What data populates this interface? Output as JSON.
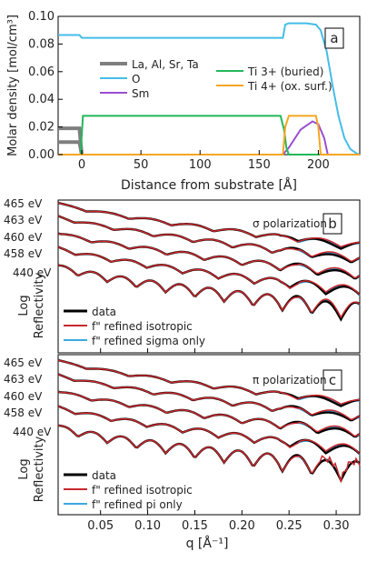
{
  "chart_data": [
    {
      "type": "line",
      "panel_label": "a",
      "xlabel": "Distance from substrate [Å]",
      "ylabel": "Molar density [mol/cm³]",
      "xlim": [
        -20,
        235
      ],
      "ylim": [
        0,
        0.1
      ],
      "xticks": [
        "0",
        "50",
        "100",
        "150",
        "200"
      ],
      "yticks": [
        "0.00",
        "0.02",
        "0.04",
        "0.06",
        "0.08",
        "0.10"
      ],
      "grid": false,
      "legend_position": "left-middle",
      "colors": {
        "La, Al, Sr, Ta": "#7f7f7f",
        "O": "#45bde8",
        "Sm": "#9b4fd0",
        "Ti 3+ (buried)": "#23b85a",
        "Ti 4+ (ox. surf.)": "#f5a623"
      },
      "series": [
        {
          "name": "La, Al, Sr, Ta",
          "x": [
            -20,
            -2,
            0
          ],
          "y": [
            0.019,
            0.019,
            0.0
          ]
        },
        {
          "name": "La, Al, Sr, Ta",
          "x": [
            -20,
            -2,
            0
          ],
          "y": [
            0.009,
            0.009,
            0.0
          ]
        },
        {
          "name": "O",
          "x": [
            -20,
            -2,
            0,
            170,
            172,
            175,
            190,
            198,
            202,
            207,
            212,
            217,
            222,
            227,
            232,
            235
          ],
          "y": [
            0.0865,
            0.0865,
            0.0845,
            0.0845,
            0.094,
            0.095,
            0.095,
            0.094,
            0.09,
            0.075,
            0.05,
            0.028,
            0.012,
            0.004,
            0.001,
            0.0
          ]
        },
        {
          "name": "Sm",
          "x": [
            -20,
            170,
            175,
            185,
            195,
            200,
            205,
            208,
            235
          ],
          "y": [
            0,
            0,
            0.005,
            0.018,
            0.024,
            0.022,
            0.012,
            0.0,
            0.0
          ]
        },
        {
          "name": "Ti 3+ (buried)",
          "x": [
            -20,
            -1,
            1,
            168,
            171,
            173,
            175,
            235
          ],
          "y": [
            0,
            0,
            0.028,
            0.028,
            0.018,
            0.005,
            0.0,
            0.0
          ]
        },
        {
          "name": "Ti 4+ (ox. surf.)",
          "x": [
            -20,
            170,
            172,
            175,
            198,
            200,
            202,
            235
          ],
          "y": [
            0,
            0,
            0.02,
            0.028,
            0.028,
            0.02,
            0.0,
            0.0
          ]
        }
      ]
    },
    {
      "type": "line",
      "panel_label": "b",
      "annotation": "σ polarization",
      "ylabel": "Log Reflectivity",
      "xlim": [
        0.005,
        0.325
      ],
      "energy_labels": [
        "465 eV",
        "463 eV",
        "460 eV",
        "458 eV",
        "440 eV"
      ],
      "legend_position": "bottom-left",
      "colors": {
        "data": "#000000",
        "f\" refined isotropic": "#c8282d",
        "f\" refined sigma only": "#3aa9e0"
      },
      "legend": [
        "data",
        "f\" refined isotropic",
        "f\" refined sigma only"
      ]
    },
    {
      "type": "line",
      "panel_label": "c",
      "annotation": "π polarization",
      "xlabel": "q [Å⁻¹]",
      "ylabel": "Log Reflectivity",
      "xlim": [
        0.005,
        0.325
      ],
      "xticks": [
        "0.05",
        "0.10",
        "0.15",
        "0.20",
        "0.25",
        "0.30"
      ],
      "energy_labels": [
        "465 eV",
        "463 eV",
        "460 eV",
        "458 eV",
        "440 eV"
      ],
      "legend_position": "bottom-left",
      "colors": {
        "data": "#000000",
        "f\" refined isotropic": "#c8282d",
        "f\" refined pi only": "#3aa9e0"
      },
      "legend": [
        "data",
        "f\" refined isotropic",
        "f\" refined pi only"
      ]
    }
  ]
}
